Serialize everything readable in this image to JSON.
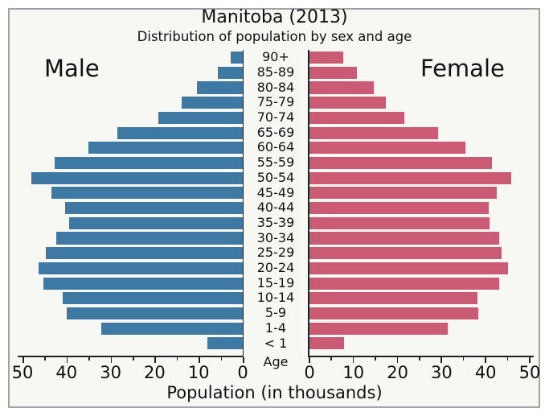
{
  "title": "Manitoba (2013)",
  "subtitle": "Distribution of population by sex and age",
  "left_group_label": "Male",
  "right_group_label": "Female",
  "age_axis_label": "Age",
  "x_axis_label": "Population (in thousands)",
  "colors": {
    "male_bar": "#3e79a3",
    "female_bar": "#cb5a74",
    "plot_background": "#f7f7f4",
    "frame_border": "#a3a3a3",
    "axis": "#222222",
    "text": "#111111"
  },
  "chart_data": {
    "type": "bar",
    "subtype": "population-pyramid",
    "orientation": "horizontal",
    "title": "Manitoba (2013)",
    "subtitle": "Distribution of population by sex and age",
    "xlabel": "Population (in thousands)",
    "center_axis_label": "Age",
    "categories": [
      "90+",
      "85-89",
      "80-84",
      "75-79",
      "70-74",
      "65-69",
      "60-64",
      "55-59",
      "50-54",
      "45-49",
      "40-44",
      "35-39",
      "30-34",
      "25-29",
      "20-24",
      "15-19",
      "10-14",
      "5-9",
      "1-4",
      "< 1"
    ],
    "series": [
      {
        "name": "Male",
        "side": "left",
        "values": [
          2.7,
          5.6,
          10.4,
          13.8,
          19.1,
          28.5,
          35.1,
          42.7,
          48.0,
          43.5,
          40.4,
          39.5,
          42.4,
          44.7,
          46.4,
          45.3,
          40.9,
          40.0,
          32.2,
          8.0
        ]
      },
      {
        "name": "Female",
        "side": "right",
        "values": [
          7.9,
          10.9,
          14.7,
          17.5,
          21.8,
          29.3,
          35.6,
          41.6,
          46.0,
          42.7,
          40.9,
          41.1,
          43.3,
          43.8,
          45.3,
          43.3,
          38.4,
          38.5,
          31.6,
          8.0
        ]
      }
    ],
    "x_ticks": [
      0,
      10,
      20,
      30,
      40,
      50
    ],
    "x_minor_ticks": [
      5,
      15,
      25,
      35,
      45
    ],
    "xlim": [
      0,
      50
    ],
    "grid": false,
    "legend_position": "none"
  }
}
